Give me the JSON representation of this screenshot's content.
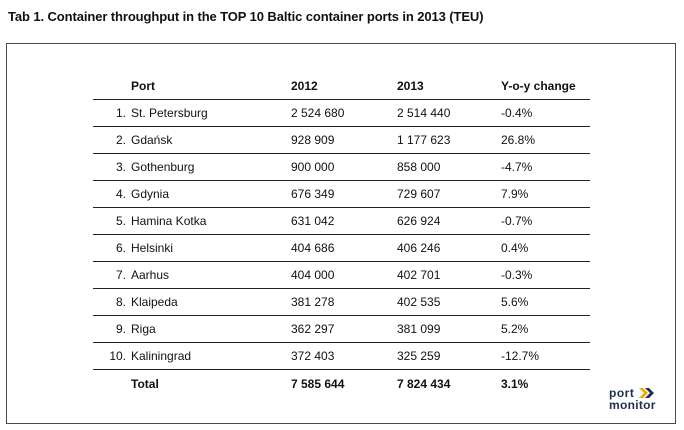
{
  "title": "Tab 1. Container throughput in the TOP 10 Baltic container ports in 2013 (TEU)",
  "table": {
    "headers": {
      "num": "",
      "port": "Port",
      "y2012": "2012",
      "y2013": "2013",
      "yoy": "Y-o-y change"
    },
    "rows": [
      {
        "num": "1.",
        "port": "St. Petersburg",
        "y2012": "2 524 680",
        "y2013": "2 514 440",
        "yoy": "-0.4%"
      },
      {
        "num": "2.",
        "port": "Gdańsk",
        "y2012": "928 909",
        "y2013": "1 177 623",
        "yoy": "26.8%"
      },
      {
        "num": "3.",
        "port": "Gothenburg",
        "y2012": "900 000",
        "y2013": "858 000",
        "yoy": "-4.7%"
      },
      {
        "num": "4.",
        "port": "Gdynia",
        "y2012": "676 349",
        "y2013": "729 607",
        "yoy": "7.9%"
      },
      {
        "num": "5.",
        "port": "Hamina Kotka",
        "y2012": "631 042",
        "y2013": "626 924",
        "yoy": "-0.7%"
      },
      {
        "num": "6.",
        "port": "Helsinki",
        "y2012": "404 686",
        "y2013": "406 246",
        "yoy": "0.4%"
      },
      {
        "num": "7.",
        "port": "Aarhus",
        "y2012": "404 000",
        "y2013": "402 701",
        "yoy": "-0.3%"
      },
      {
        "num": "8.",
        "port": "Klaipeda",
        "y2012": "381 278",
        "y2013": "402 535",
        "yoy": "5.6%"
      },
      {
        "num": "9.",
        "port": "Riga",
        "y2012": "362 297",
        "y2013": "381 099",
        "yoy": "5.2%"
      },
      {
        "num": "10.",
        "port": "Kaliningrad",
        "y2012": "372 403",
        "y2013": "325 259",
        "yoy": "-12.7%"
      }
    ],
    "total": {
      "label": "Total",
      "y2012": "7 585 644",
      "y2013": "7 824 434",
      "yoy": "3.1%"
    }
  },
  "logo": {
    "line1": "port",
    "line2": "monitor",
    "accent_color": "#f2a900",
    "text_color": "#1f2f4f"
  }
}
